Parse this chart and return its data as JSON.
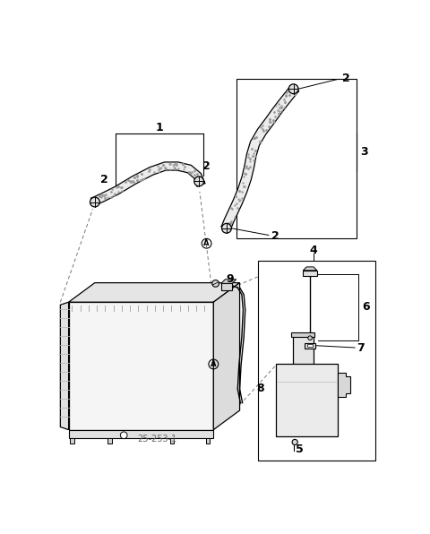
{
  "bg": "#ffffff",
  "lc": "#000000",
  "gray1": "#e8e8e8",
  "gray2": "#d0d0d0",
  "gray3": "#aaaaaa",
  "speckle": "#888888",
  "label_gray": "#888888"
}
